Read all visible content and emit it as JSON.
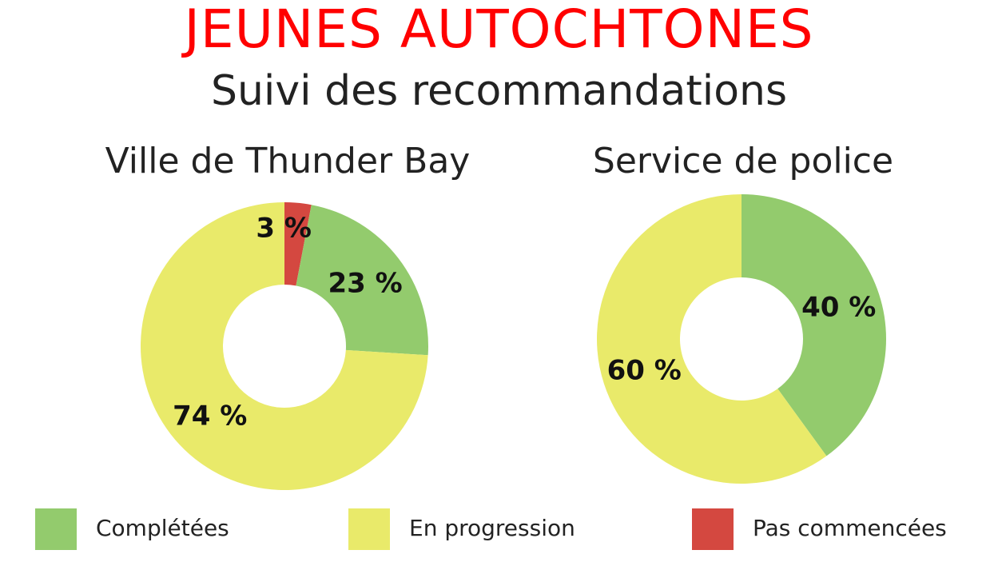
{
  "title": "JEUNES AUTOCHTONES",
  "subtitle": "Suivi des recommandations",
  "legend": [
    {
      "label": "Complétées",
      "color": "#93cb6d"
    },
    {
      "label": "En progression",
      "color": "#e9ea6a"
    },
    {
      "label": "Pas commencées",
      "color": "#d44840"
    }
  ],
  "chart_data": [
    {
      "type": "pie",
      "title": "Ville de Thunder Bay",
      "donut": true,
      "slices": [
        {
          "label": "Pas commencées",
          "value": 3,
          "display": "3 %",
          "color": "#d44840"
        },
        {
          "label": "Complétées",
          "value": 23,
          "display": "23 %",
          "color": "#93cb6d"
        },
        {
          "label": "En progression",
          "value": 74,
          "display": "74 %",
          "color": "#e9ea6a"
        }
      ]
    },
    {
      "type": "pie",
      "title": "Service de police",
      "donut": true,
      "slices": [
        {
          "label": "Complétées",
          "value": 40,
          "display": "40 %",
          "color": "#93cb6d"
        },
        {
          "label": "En progression",
          "value": 60,
          "display": "60 %",
          "color": "#e9ea6a"
        }
      ]
    }
  ]
}
